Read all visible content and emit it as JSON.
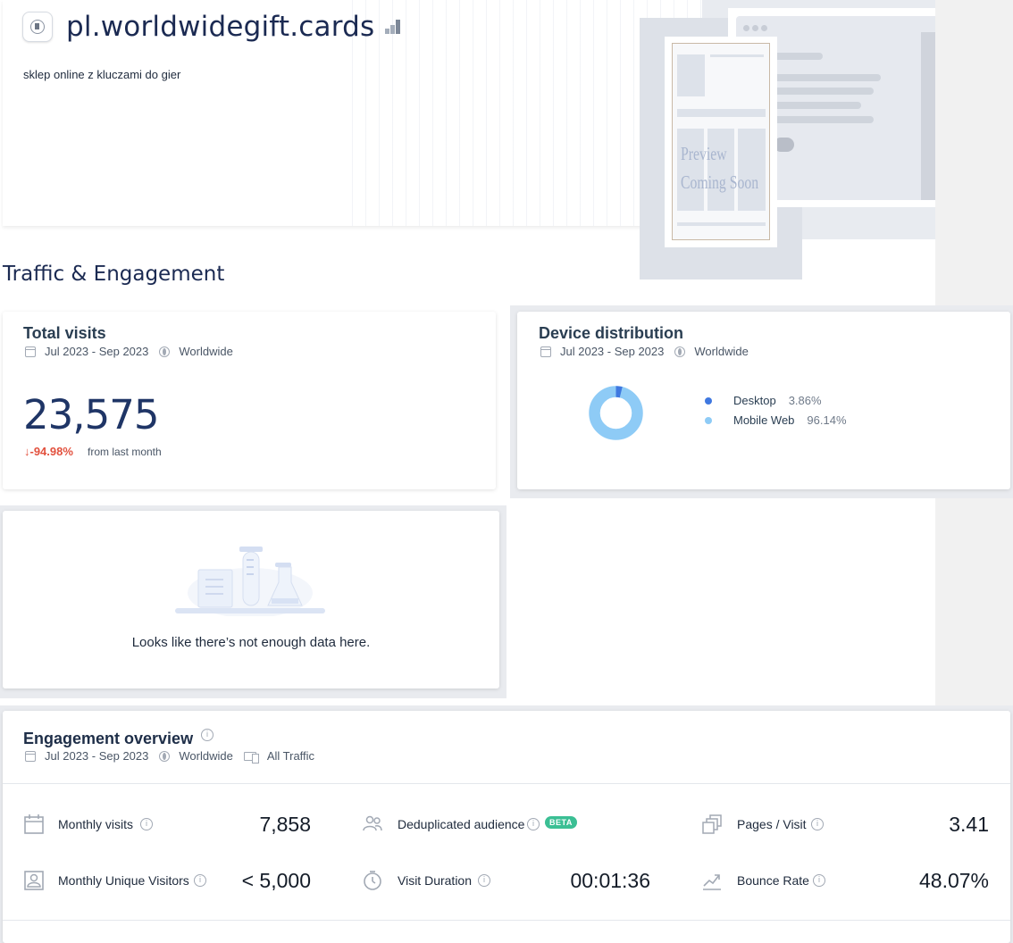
{
  "header": {
    "site_title": "pl.worldwidegift.cards",
    "subtitle": "sklep online z kluczami do gier",
    "preview_text": [
      "Preview",
      "Coming Soon"
    ]
  },
  "section_title": "Traffic & Engagement",
  "total_visits": {
    "title": "Total visits",
    "date_range": "Jul 2023 - Sep 2023",
    "region": "Worldwide",
    "value": "23,575",
    "change": "-94.98%",
    "change_note": "from last month",
    "change_color": "#e2513e"
  },
  "device_distribution": {
    "title": "Device distribution",
    "date_range": "Jul 2023 - Sep 2023",
    "region": "Worldwide",
    "items": [
      {
        "label": "Desktop",
        "value": "3.86%",
        "fraction": 0.0386,
        "color": "#3f78e0"
      },
      {
        "label": "Mobile Web",
        "value": "96.14%",
        "fraction": 0.9614,
        "color": "#8ecbf6"
      }
    ]
  },
  "empty_state": {
    "message": "Looks like there’s not enough data here."
  },
  "engagement": {
    "title": "Engagement overview",
    "date_range": "Jul 2023 - Sep 2023",
    "region": "Worldwide",
    "traffic": "All Traffic",
    "beta_label": "BETA",
    "metrics": [
      {
        "label": "Monthly visits",
        "value": "7,858",
        "icon": "calendar-icon"
      },
      {
        "label": "Deduplicated audience",
        "value": "",
        "icon": "people-icon"
      },
      {
        "label": "Pages / Visit",
        "value": "3.41",
        "icon": "pages-icon"
      },
      {
        "label": "Monthly Unique Visitors",
        "value": "< 5,000",
        "icon": "visitor-icon"
      },
      {
        "label": "Visit Duration",
        "value": "00:01:36",
        "icon": "timer-icon"
      },
      {
        "label": "Bounce Rate",
        "value": "48.07%",
        "icon": "bounce-icon"
      }
    ]
  }
}
